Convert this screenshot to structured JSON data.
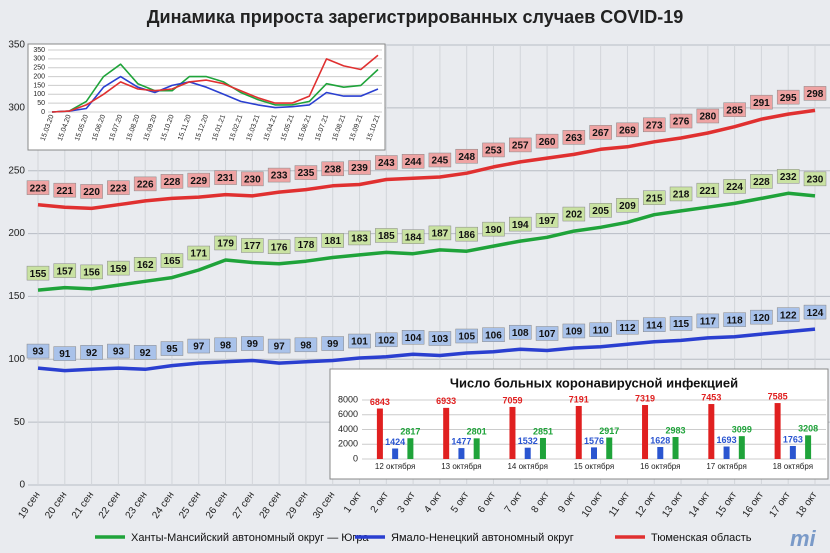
{
  "chart_data": [
    {
      "type": "line",
      "title": "Динамика прироста зарегистрированных случаев COVID-19",
      "categories": [
        "19 сен",
        "20 сен",
        "21 сен",
        "22 сен",
        "23 сен",
        "24 сен",
        "25 сен",
        "26 сен",
        "27 сен",
        "28 сен",
        "29 сен",
        "30 сен",
        "1 окт",
        "2 окт",
        "3 окт",
        "4 окт",
        "5 окт",
        "6 окт",
        "7 окт",
        "8 окт",
        "9 окт",
        "10 окт",
        "11 окт",
        "12 окт",
        "13 окт",
        "14 окт",
        "15 окт",
        "16 окт",
        "17 окт",
        "18 окт"
      ],
      "series": [
        {
          "name": "Ханты-Мансийский автономный округ — Югра",
          "color": "#1fa33a",
          "values": [
            155,
            157,
            156,
            159,
            162,
            165,
            171,
            179,
            177,
            176,
            178,
            181,
            183,
            185,
            184,
            187,
            186,
            190,
            194,
            197,
            202,
            205,
            209,
            215,
            218,
            221,
            224,
            228,
            232,
            230
          ]
        },
        {
          "name": "Ямало-Ненецкий автономный округ",
          "color": "#2a3fd0",
          "values": [
            93,
            91,
            92,
            93,
            92,
            95,
            97,
            98,
            99,
            97,
            98,
            99,
            101,
            102,
            104,
            103,
            105,
            106,
            108,
            107,
            109,
            110,
            112,
            114,
            115,
            117,
            118,
            120,
            122,
            124
          ]
        },
        {
          "name": "Тюменская область",
          "color": "#e03030",
          "values": [
            223,
            221,
            220,
            223,
            226,
            228,
            229,
            231,
            230,
            233,
            235,
            238,
            239,
            243,
            244,
            245,
            248,
            253,
            257,
            260,
            263,
            267,
            269,
            273,
            276,
            280,
            285,
            291,
            295,
            298
          ]
        }
      ],
      "ylim": [
        0,
        350
      ],
      "yticks": [
        0,
        50,
        100,
        150,
        200,
        250,
        300,
        350
      ],
      "grid": true,
      "logo": "mi"
    },
    {
      "type": "line",
      "categories": [
        "15.03.20",
        "15.04.20",
        "15.05.20",
        "15.06.20",
        "15.07.20",
        "15.08.20",
        "15.09.20",
        "15.10.20",
        "15.11.20",
        "15.12.20",
        "15.01.21",
        "15.02.21",
        "15.03.21",
        "15.04.21",
        "15.05.21",
        "15.06.21",
        "15.07.21",
        "15.08.21",
        "15.09.21",
        "15.10.21"
      ],
      "series": [
        {
          "color": "#1fa33a",
          "values": [
            0,
            5,
            60,
            200,
            270,
            160,
            120,
            120,
            200,
            200,
            170,
            110,
            70,
            40,
            40,
            60,
            160,
            140,
            150,
            240
          ]
        },
        {
          "color": "#2a3fd0",
          "values": [
            0,
            5,
            20,
            140,
            200,
            140,
            110,
            150,
            170,
            140,
            100,
            60,
            40,
            25,
            30,
            40,
            110,
            90,
            90,
            130
          ]
        },
        {
          "color": "#e03030",
          "values": [
            0,
            5,
            40,
            100,
            170,
            130,
            120,
            130,
            170,
            180,
            160,
            120,
            80,
            50,
            50,
            90,
            300,
            260,
            240,
            320
          ]
        }
      ],
      "ylim": [
        0,
        350
      ],
      "yticks": [
        0,
        50,
        100,
        150,
        200,
        250,
        300,
        350
      ],
      "grid": true
    },
    {
      "type": "bar",
      "title": "Число больных коронавирусной инфекцией",
      "categories": [
        "12 октября",
        "13 октября",
        "14 октября",
        "15 октября",
        "16 октября",
        "17 октября",
        "18 октября"
      ],
      "series": [
        {
          "color": "#e02020",
          "values": [
            6843,
            6933,
            7059,
            7191,
            7319,
            7453,
            7585
          ]
        },
        {
          "color": "#2a55d0",
          "values": [
            1424,
            1477,
            1532,
            1576,
            1628,
            1693,
            1763
          ]
        },
        {
          "color": "#1fa33a",
          "values": [
            2817,
            2801,
            2851,
            2917,
            2983,
            3099,
            3208
          ]
        }
      ],
      "ylim": [
        0,
        8000
      ],
      "yticks": [
        0,
        2000,
        4000,
        6000,
        8000
      ],
      "grid": true
    }
  ]
}
